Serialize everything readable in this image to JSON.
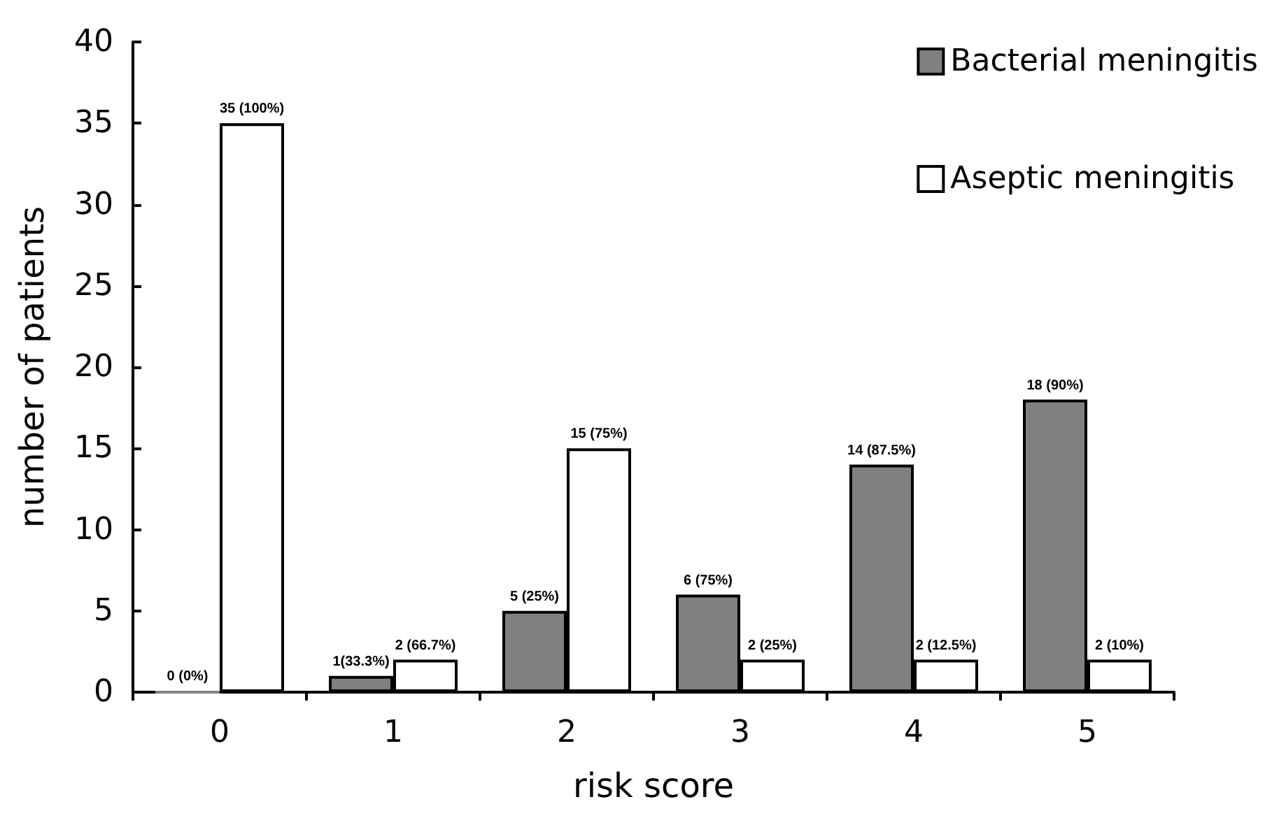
{
  "chart_data": {
    "type": "bar",
    "xlabel": "risk score",
    "ylabel": "number of patients",
    "categories": [
      "0",
      "1",
      "2",
      "3",
      "4",
      "5"
    ],
    "series": [
      {
        "name": "Bacterial meningitis",
        "color": "#808080",
        "values": [
          0,
          1,
          5,
          6,
          14,
          18
        ],
        "value_labels": [
          "0 (0%)",
          "1(33.3%)",
          "5 (25%)",
          "6 (75%)",
          "14 (87.5%)",
          "18 (90%)"
        ]
      },
      {
        "name": "Aseptic meningitis",
        "color": "#ffffff",
        "values": [
          35,
          2,
          15,
          2,
          2,
          2
        ],
        "value_labels": [
          "35 (100%)",
          "2 (66.7%)",
          "15 (75%)",
          "2 (25%)",
          "2 (12.5%)",
          "2 (10%)"
        ]
      }
    ],
    "ylim": [
      0,
      40
    ],
    "yticks": [
      0,
      5,
      10,
      15,
      20,
      25,
      30,
      35,
      40
    ],
    "grid": false,
    "legend": "top right"
  }
}
